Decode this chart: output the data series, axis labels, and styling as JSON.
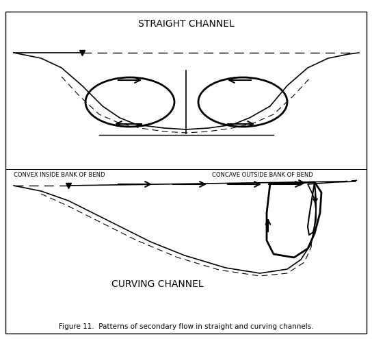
{
  "title": "STRAIGHT CHANNEL",
  "title2": "CURVING CHANNEL",
  "label_left": "CONVEX INSIDE BANK OF BEND",
  "label_right": "CONCAVE OUTSIDE BANK OF BEND",
  "caption": "Figure 11.  Patterns of secondary flow in straight and curving channels.",
  "bg_color": "#ffffff",
  "line_color": "#000000",
  "fig_width": 5.44,
  "fig_height": 4.95,
  "dpi": 100
}
